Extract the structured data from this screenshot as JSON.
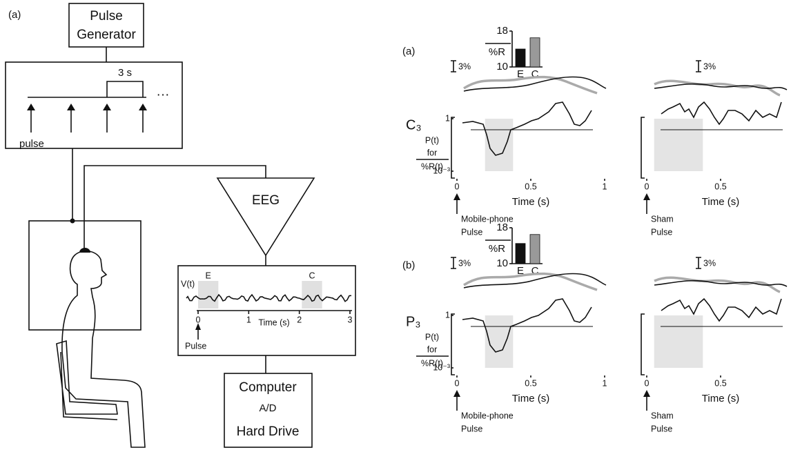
{
  "diagram": {
    "label": "(a)",
    "pulse_generator": [
      "Pulse",
      "Generator"
    ],
    "interval": "3 s",
    "ellipsis": "···",
    "pulse": "pulse",
    "amplifier": "EEG",
    "eeg_inset": {
      "ylabel": "V(t)",
      "xlim": [
        0,
        3
      ],
      "xticks": [
        0,
        1,
        2,
        3
      ],
      "xlabel": "Time (s)",
      "pulse": "Pulse",
      "windows": [
        {
          "label": "E",
          "range": [
            0,
            0.4
          ]
        },
        {
          "label": "C",
          "range": [
            2.05,
            2.45
          ]
        }
      ]
    },
    "computer": [
      "Computer",
      "A/D",
      "Hard Drive"
    ]
  },
  "panels": [
    {
      "label": "(a)",
      "electrode": "C₃",
      "bar_inset": {
        "type": "bar",
        "categories": [
          "E",
          "C"
        ],
        "values": [
          14,
          16.5
        ],
        "colors": [
          "#111111",
          "#999999"
        ],
        "ylabel": "%R",
        "ylim": [
          10,
          18
        ],
        "yticks": [
          10,
          18
        ]
      },
      "p_axis": {
        "ylabel": [
          "P(t)",
          "for",
          "%R(t)"
        ],
        "log": true,
        "ylim": [
          0.001,
          1
        ],
        "yticks": [
          1,
          {
            "value": 0.001,
            "label": "10⁻³"
          }
        ]
      },
      "plots": [
        {
          "scale_label": "3%",
          "xlim": [
            0,
            1
          ],
          "xticks": [
            0,
            0.5,
            1
          ],
          "xlabel": "Time (s)",
          "pulse_label": [
            "Mobile-phone",
            "Pulse"
          ],
          "window": [
            0.19,
            0.38
          ]
        },
        {
          "scale_label": "3%",
          "xlim": [
            0,
            1
          ],
          "xticks": [
            0,
            0.5
          ],
          "xlabel": "Time (s)",
          "pulse_label": [
            "Sham",
            "Pulse"
          ],
          "window": [
            0.05,
            0.38
          ]
        }
      ]
    },
    {
      "label": "(b)",
      "electrode": "P₃",
      "bar_inset": {
        "type": "bar",
        "categories": [
          "E",
          "C"
        ],
        "values": [
          14.5,
          16.5
        ],
        "colors": [
          "#111111",
          "#999999"
        ],
        "ylabel": "%R",
        "ylim": [
          10,
          18
        ],
        "yticks": [
          10,
          18
        ]
      },
      "p_axis": {
        "ylabel": [
          "P(t)",
          "for",
          "%R(t)"
        ],
        "log": true,
        "ylim": [
          0.001,
          1
        ],
        "yticks": [
          1,
          {
            "value": 0.001,
            "label": "10⁻³"
          }
        ]
      },
      "plots": [
        {
          "scale_label": "3%",
          "xlim": [
            0,
            1
          ],
          "xticks": [
            0,
            0.5,
            1
          ],
          "xlabel": "Time (s)",
          "pulse_label": [
            "Mobile-phone",
            "Pulse"
          ],
          "window": [
            0.19,
            0.38
          ]
        },
        {
          "scale_label": "3%",
          "xlim": [
            0,
            1
          ],
          "xticks": [
            0,
            0.5
          ],
          "xlabel": "Time (s)",
          "pulse_label": [
            "Sham",
            "Pulse"
          ],
          "window": [
            0.05,
            0.38
          ]
        }
      ]
    }
  ]
}
